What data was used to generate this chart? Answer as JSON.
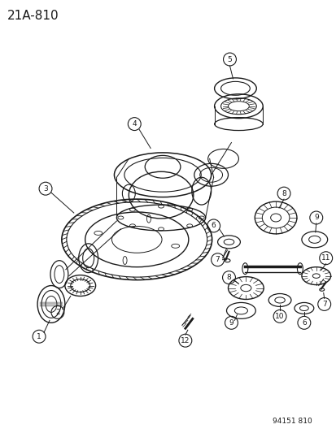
{
  "title": "21A-810",
  "footer": "94151 810",
  "bg_color": "#ffffff",
  "line_color": "#1a1a1a",
  "title_fontsize": 11,
  "footer_fontsize": 6.5,
  "fig_width": 4.14,
  "fig_height": 5.33,
  "dpi": 100
}
